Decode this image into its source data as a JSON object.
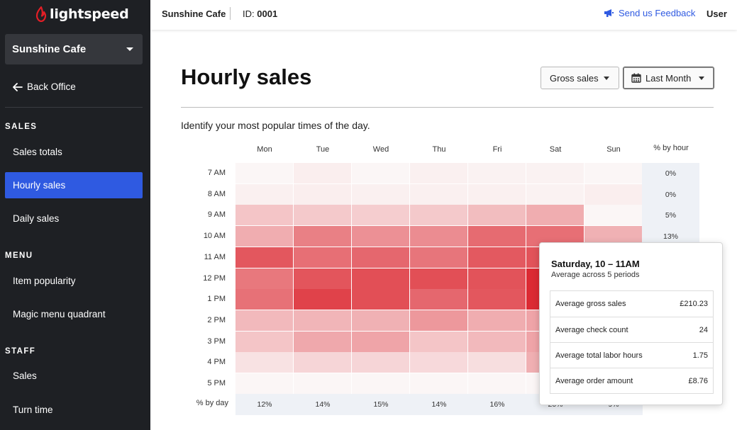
{
  "brand": {
    "logo_text": "lightspeed",
    "accent": "#e31e26"
  },
  "sidebar": {
    "store": "Sunshine Cafe",
    "back_office": "Back Office",
    "sections": [
      {
        "label": "SALES",
        "items": [
          {
            "label": "Sales totals"
          },
          {
            "label": "Hourly sales",
            "active": true
          },
          {
            "label": "Daily sales"
          }
        ]
      },
      {
        "label": "MENU",
        "items": [
          {
            "label": "Item popularity"
          },
          {
            "label": "Magic menu quadrant"
          }
        ]
      },
      {
        "label": "STAFF",
        "items": [
          {
            "label": "Sales"
          },
          {
            "label": "Turn time"
          }
        ]
      }
    ],
    "active_color": "#2f5ae1"
  },
  "topbar": {
    "store": "Sunshine Cafe",
    "id_label": "ID:",
    "id_value": "0001",
    "feedback": "Send us Feedback",
    "user": "User",
    "link_color": "#2f5ae1"
  },
  "main": {
    "title": "Hourly sales",
    "metric_select": "Gross sales",
    "period_select": "Last Month",
    "subtitle": "Identify your most popular times of the day."
  },
  "heatmap": {
    "days": [
      "Mon",
      "Tue",
      "Wed",
      "Thu",
      "Fri",
      "Sat",
      "Sun"
    ],
    "hours": [
      "7 AM",
      "8 AM",
      "9 AM",
      "10 AM",
      "11 AM",
      "12 PM",
      "1 PM",
      "2 PM",
      "3 PM",
      "4 PM",
      "5 PM"
    ],
    "hour_col_label": "% by hour",
    "day_row_label": "% by day",
    "pct_by_hour": [
      "0%",
      "0%",
      "5%",
      "13%",
      "",
      "",
      "",
      "",
      "",
      "",
      ""
    ],
    "pct_by_day": [
      "12%",
      "14%",
      "15%",
      "14%",
      "16%",
      "20%",
      "9%"
    ],
    "color_scale": {
      "low": "#fbf6f6",
      "high": "#dc2a33"
    },
    "intensity": [
      [
        0.0,
        0.04,
        0.0,
        0.03,
        0.02,
        0.02,
        0.0
      ],
      [
        0.03,
        0.04,
        0.03,
        0.03,
        0.03,
        0.02,
        0.04
      ],
      [
        0.24,
        0.22,
        0.2,
        0.22,
        0.28,
        0.36,
        0.0
      ],
      [
        0.36,
        0.58,
        0.5,
        0.52,
        0.68,
        0.66,
        0.34
      ],
      [
        0.78,
        0.66,
        0.7,
        0.63,
        0.77,
        0.8,
        0.35
      ],
      [
        0.62,
        0.79,
        0.82,
        0.82,
        0.8,
        1.0,
        0.35
      ],
      [
        0.65,
        0.88,
        0.82,
        0.7,
        0.78,
        1.0,
        0.35
      ],
      [
        0.3,
        0.32,
        0.34,
        0.46,
        0.36,
        0.4,
        0.2
      ],
      [
        0.24,
        0.38,
        0.4,
        0.24,
        0.3,
        0.4,
        0.2
      ],
      [
        0.1,
        0.16,
        0.16,
        0.14,
        0.12,
        0.35,
        0.1
      ],
      [
        0.0,
        0.0,
        0.0,
        0.0,
        0.0,
        0.0,
        0.0
      ]
    ]
  },
  "tooltip": {
    "title": "Saturday, 10 – 11AM",
    "subtitle": "Average across 5 periods",
    "rows": [
      {
        "label": "Average gross sales",
        "value": "£210.23"
      },
      {
        "label": "Average check count",
        "value": "24"
      },
      {
        "label": "Average total labor hours",
        "value": "1.75"
      },
      {
        "label": "Average order amount",
        "value": "£8.76"
      }
    ]
  }
}
